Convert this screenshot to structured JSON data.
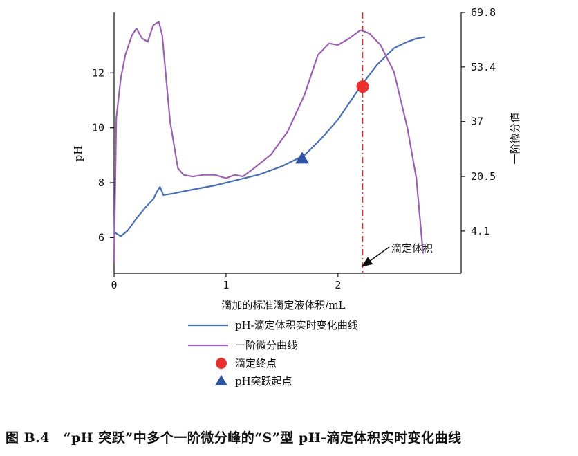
{
  "chart_data": {
    "type": "line",
    "x": {
      "label": "滴加的标准滴定液体积/mL",
      "range": [
        0,
        3.1
      ],
      "ticks": [
        0,
        1,
        2
      ],
      "tick_labels": [
        "0",
        "1",
        "2"
      ]
    },
    "y_left": {
      "label": "pH",
      "range": [
        4.7,
        14.2
      ],
      "ticks": [
        6,
        8,
        10,
        12
      ],
      "tick_labels": [
        "6",
        "8",
        "10",
        "12"
      ]
    },
    "y_right": {
      "label": "一阶微分值",
      "range": [
        -8.6,
        69.8
      ],
      "ticks": [
        4.1,
        20.5,
        37,
        53.4,
        69.8
      ],
      "tick_labels": [
        "4.1",
        "20.5",
        "37",
        "53.4",
        "69.8"
      ]
    },
    "series": [
      {
        "name": "pH-滴定体积实时变化曲线",
        "color": "#4a6fb0",
        "axis": "left",
        "points": [
          [
            0,
            6.2
          ],
          [
            0.06,
            6.05
          ],
          [
            0.12,
            6.25
          ],
          [
            0.2,
            6.7
          ],
          [
            0.28,
            7.1
          ],
          [
            0.35,
            7.4
          ],
          [
            0.38,
            7.65
          ],
          [
            0.41,
            7.85
          ],
          [
            0.44,
            7.55
          ],
          [
            0.52,
            7.6
          ],
          [
            0.7,
            7.75
          ],
          [
            0.9,
            7.9
          ],
          [
            1.1,
            8.1
          ],
          [
            1.3,
            8.3
          ],
          [
            1.5,
            8.6
          ],
          [
            1.7,
            9.0
          ],
          [
            1.85,
            9.6
          ],
          [
            2.0,
            10.3
          ],
          [
            2.2,
            11.5
          ],
          [
            2.35,
            12.3
          ],
          [
            2.5,
            12.9
          ],
          [
            2.6,
            13.1
          ],
          [
            2.7,
            13.25
          ],
          [
            2.77,
            13.3
          ]
        ]
      },
      {
        "name": "一阶微分曲线",
        "color": "#9a62b0",
        "axis": "right",
        "points": [
          [
            0,
            -5
          ],
          [
            0.02,
            38
          ],
          [
            0.06,
            50
          ],
          [
            0.1,
            57
          ],
          [
            0.16,
            63
          ],
          [
            0.2,
            65
          ],
          [
            0.25,
            62
          ],
          [
            0.3,
            61
          ],
          [
            0.35,
            66
          ],
          [
            0.4,
            67
          ],
          [
            0.43,
            63
          ],
          [
            0.5,
            37
          ],
          [
            0.57,
            23
          ],
          [
            0.62,
            21
          ],
          [
            0.7,
            20.5
          ],
          [
            0.8,
            21
          ],
          [
            0.9,
            21
          ],
          [
            1.0,
            20
          ],
          [
            1.08,
            21
          ],
          [
            1.15,
            20.5
          ],
          [
            1.25,
            23
          ],
          [
            1.4,
            27
          ],
          [
            1.55,
            34
          ],
          [
            1.7,
            45
          ],
          [
            1.82,
            57
          ],
          [
            1.92,
            60.5
          ],
          [
            2.0,
            60
          ],
          [
            2.1,
            62
          ],
          [
            2.2,
            64.5
          ],
          [
            2.28,
            63.5
          ],
          [
            2.38,
            60
          ],
          [
            2.5,
            52
          ],
          [
            2.62,
            35
          ],
          [
            2.7,
            20
          ],
          [
            2.76,
            -2.5
          ]
        ]
      }
    ],
    "markers": [
      {
        "name": "滴定终点",
        "shape": "circle",
        "color": "#e8302e",
        "x": 2.22,
        "y": 11.5,
        "axis": "left"
      },
      {
        "name": "pH突跃起点",
        "shape": "triangle",
        "color": "#2f55a2",
        "x": 1.68,
        "y": 8.9,
        "axis": "left"
      }
    ],
    "reference_line": {
      "x": 2.22,
      "color": "#d8322e",
      "style": "dash-dot"
    },
    "annotation": {
      "text": "滴定体积",
      "x": 2.22
    },
    "legend_position": "bottom",
    "grid": false
  },
  "legend": {
    "items": [
      {
        "label": "pH-滴定体积实时变化曲线"
      },
      {
        "label": "一阶微分曲线"
      },
      {
        "label": "滴定终点"
      },
      {
        "label": "pH突跃起点"
      }
    ]
  },
  "caption": "图 B.4　“pH 突跃”中多个一阶微分峰的“S”型 pH-滴定体积实时变化曲线"
}
